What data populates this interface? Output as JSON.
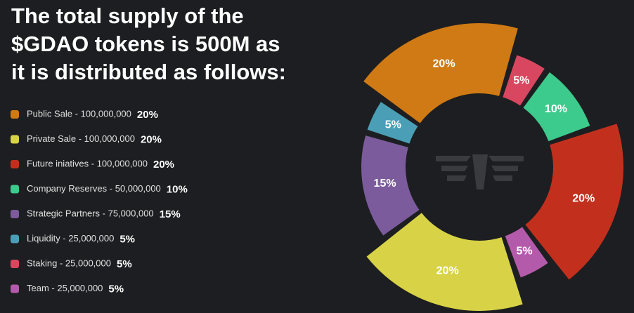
{
  "chart_data": {
    "type": "donut",
    "title": "The total supply of the $GDAO tokens is 500M as it is distributed as follows:",
    "categories": [
      "Public Sale - 100,000,000",
      "Private Sale - 100,000,000",
      "Future iniatives - 100,000,000",
      "Company Reserves - 50,000,000",
      "Strategic Partners - 75,000,000",
      "Liquidity - 25,000,000",
      "Staking - 25,000,000",
      "Team - 25,000,000"
    ],
    "values": [
      20,
      20,
      20,
      10,
      15,
      5,
      5,
      5
    ],
    "value_labels": [
      "20%",
      "20%",
      "20%",
      "10%",
      "15%",
      "5%",
      "5%",
      "5%"
    ],
    "colors": [
      "#cf7a14",
      "#d8d346",
      "#c2301d",
      "#3ccb8c",
      "#7b5b9c",
      "#4a9fb6",
      "#d8475f",
      "#b45aaa"
    ]
  }
}
